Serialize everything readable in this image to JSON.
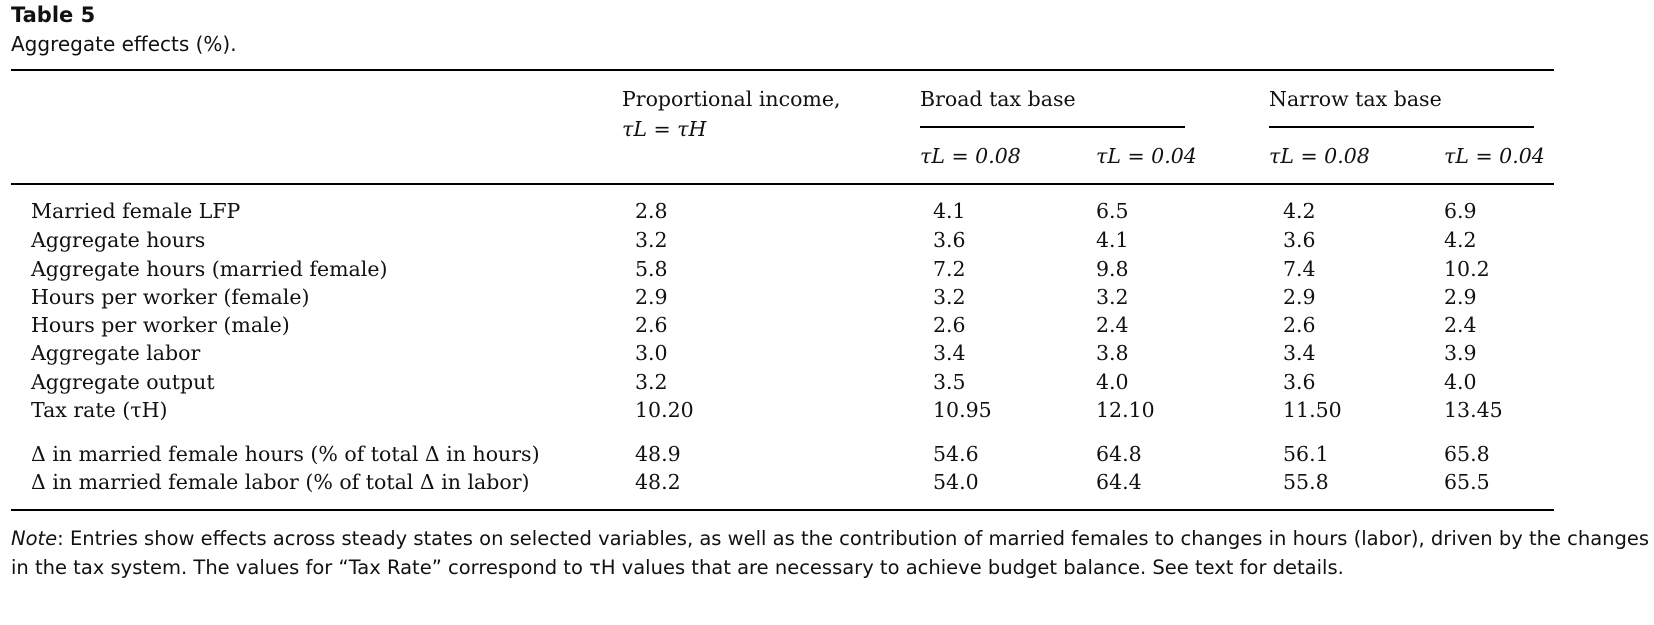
{
  "table": {
    "title": "Table 5",
    "caption": "Aggregate effects (%).",
    "headers": {
      "proportional": "Proportional income,",
      "proportional_sub": "τL = τH",
      "broad": "Broad tax base",
      "narrow": "Narrow tax base",
      "broad_008": "τL = 0.08",
      "broad_004": "τL = 0.04",
      "narrow_008": "τL = 0.08",
      "narrow_004": "τL = 0.04"
    },
    "rows": [
      {
        "label": "Married female LFP",
        "values": [
          "2.8",
          "4.1",
          "6.5",
          "4.2",
          "6.9"
        ]
      },
      {
        "label": "Aggregate hours",
        "values": [
          "3.2",
          "3.6",
          "4.1",
          "3.6",
          "4.2"
        ]
      },
      {
        "label": "Aggregate hours (married female)",
        "values": [
          "5.8",
          "7.2",
          "9.8",
          "7.4",
          "10.2"
        ]
      },
      {
        "label": "Hours per worker (female)",
        "values": [
          "2.9",
          "3.2",
          "3.2",
          "2.9",
          "2.9"
        ]
      },
      {
        "label": "Hours per worker (male)",
        "values": [
          "2.6",
          "2.6",
          "2.4",
          "2.6",
          "2.4"
        ]
      },
      {
        "label": "Aggregate labor",
        "values": [
          "3.0",
          "3.4",
          "3.8",
          "3.4",
          "3.9"
        ]
      },
      {
        "label": "Aggregate output",
        "values": [
          "3.2",
          "3.5",
          "4.0",
          "3.6",
          "4.0"
        ]
      },
      {
        "label": "Tax rate (τH)",
        "values": [
          "10.20",
          "10.95",
          "12.10",
          "11.50",
          "13.45"
        ]
      },
      {
        "label": "Δ in married female hours (% of total Δ in hours)",
        "values": [
          "48.9",
          "54.6",
          "64.8",
          "56.1",
          "65.8"
        ]
      },
      {
        "label": "Δ in married female labor (% of total Δ in labor)",
        "values": [
          "48.2",
          "54.0",
          "64.4",
          "55.8",
          "65.5"
        ]
      }
    ]
  },
  "note": {
    "label": "Note",
    "text": ": Entries show effects across steady states on selected variables, as well as the contribution of married females to changes in hours (labor), driven by the changes in the tax system. The values for “Tax Rate” correspond to τH values that are necessary to achieve budget balance. See text for details."
  }
}
